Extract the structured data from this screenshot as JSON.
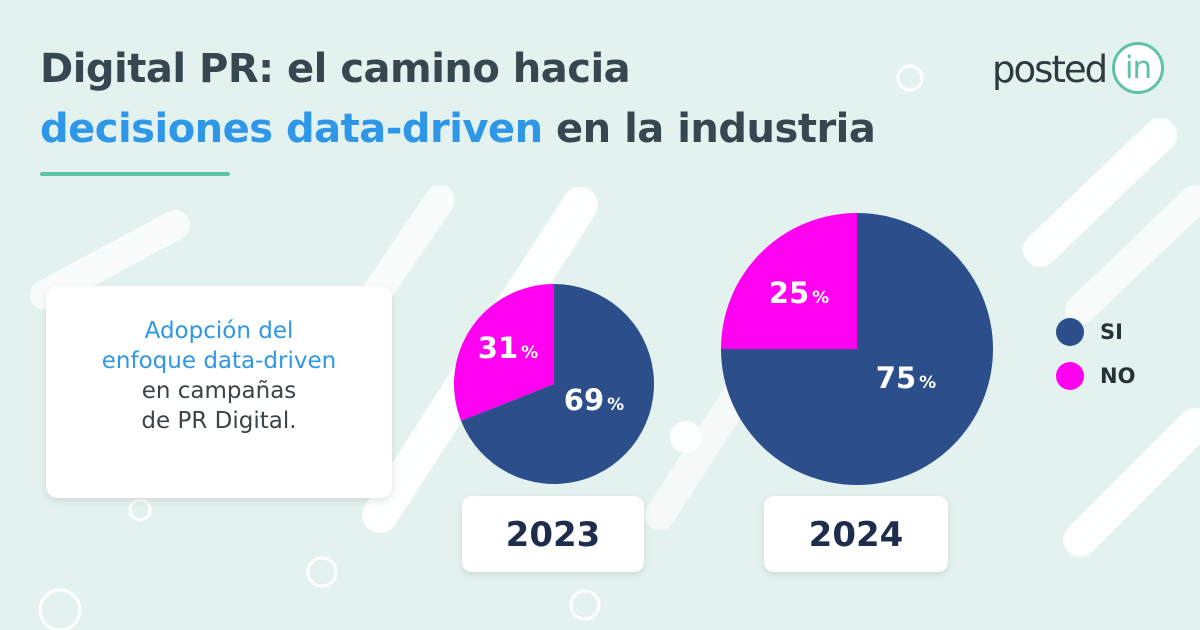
{
  "title": {
    "line1": "Digital PR: el camino hacia",
    "line2_highlight": "decisiones data-driven",
    "line2_rest": " en la industria"
  },
  "logo": {
    "text": "posted",
    "badge": "in"
  },
  "description": {
    "line1": "Adopción del",
    "line2": "enfoque data-driven",
    "line3": "en campañas",
    "line4": "de PR Digital."
  },
  "colors": {
    "si": "#2c4e8a",
    "no": "#ff00f0",
    "accent_blue": "#2f97e8",
    "accent_green": "#5ec3a5"
  },
  "legend": [
    {
      "label": "SI",
      "color": "#2c4e8a"
    },
    {
      "label": "NO",
      "color": "#ff00f0"
    }
  ],
  "chart_data": [
    {
      "type": "pie",
      "title": "2023",
      "categories": [
        "SI",
        "NO"
      ],
      "values": [
        69,
        31
      ],
      "unit": "%",
      "value_labels": [
        "69",
        "31"
      ]
    },
    {
      "type": "pie",
      "title": "2024",
      "categories": [
        "SI",
        "NO"
      ],
      "values": [
        75,
        25
      ],
      "unit": "%",
      "value_labels": [
        "75",
        "25"
      ]
    }
  ]
}
